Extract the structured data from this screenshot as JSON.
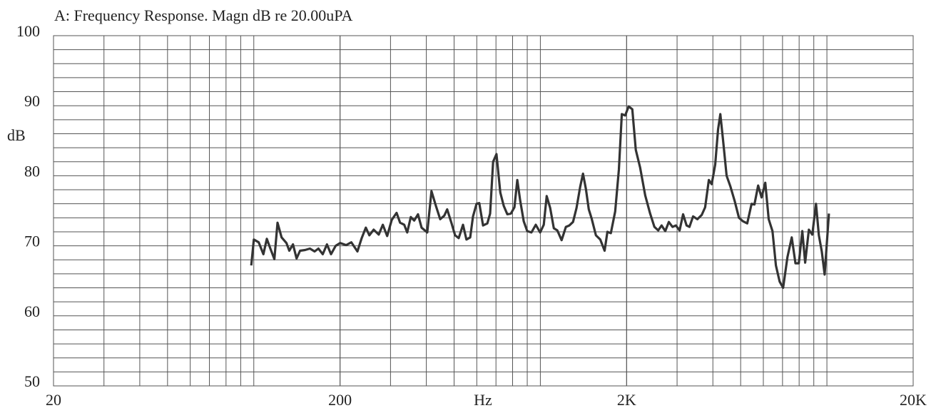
{
  "chart_data": {
    "type": "line",
    "title": "A: Frequency Response. Magn dB re 20.00uPA",
    "y_label": "dB",
    "x_label": "Hz",
    "x_log": true,
    "grid": true,
    "color": "#333333",
    "xlim": [
      20,
      20000
    ],
    "xticks": [
      20,
      200,
      {
        "value": 2000,
        "label": "2K"
      },
      {
        "value": 20000,
        "label": "20K"
      }
    ],
    "ylim": [
      50,
      100
    ],
    "yticks": [
      50,
      60,
      70,
      80,
      90,
      100
    ],
    "x": [
      98,
      100,
      104,
      108,
      111,
      114,
      118,
      121,
      125,
      130,
      133,
      137,
      141,
      145,
      151,
      157,
      163,
      168,
      174,
      180,
      186,
      193,
      200,
      210,
      219,
      230,
      238,
      246,
      253,
      262,
      273,
      282,
      292,
      303,
      315,
      324,
      335,
      343,
      353,
      363,
      374,
      385,
      403,
      417,
      432,
      447,
      462,
      473,
      490,
      504,
      519,
      537,
      552,
      569,
      582,
      599,
      612,
      631,
      653,
      668,
      684,
      703,
      725,
      745,
      767,
      789,
      812,
      831,
      850,
      875,
      900,
      931,
      964,
      998,
      1028,
      1052,
      1082,
      1114,
      1146,
      1186,
      1228,
      1262,
      1300,
      1337,
      1377,
      1409,
      1442,
      1476,
      1510,
      1563,
      1618,
      1676,
      1714,
      1762,
      1824,
      1880,
      1924,
      1977,
      2033,
      2094,
      2153,
      2229,
      2323,
      2416,
      2501,
      2577,
      2649,
      2729,
      2807,
      2891,
      2972,
      3062,
      3148,
      3238,
      3313,
      3412,
      3532,
      3656,
      3758,
      3872,
      3963,
      4075,
      4170,
      4246,
      4346,
      4468,
      4603,
      4766,
      4933,
      5094,
      5273,
      5459,
      5586,
      5754,
      5917,
      6096,
      6266,
      6456,
      6638,
      6839,
      7032,
      7282,
      7539,
      7765,
      7980,
      8205,
      8396,
      8650,
      8892,
      9163,
      9376,
      9596,
      9820,
      10164
    ],
    "values": [
      67.2,
      70.9,
      70.5,
      68.8,
      71.0,
      69.7,
      68.1,
      73.3,
      71.2,
      70.4,
      69.3,
      70.2,
      68.2,
      69.3,
      69.4,
      69.6,
      69.2,
      69.6,
      68.8,
      70.2,
      68.8,
      70.0,
      70.4,
      70.1,
      70.5,
      69.2,
      71.1,
      72.6,
      71.5,
      72.3,
      71.6,
      73.0,
      71.4,
      73.7,
      74.7,
      73.3,
      73.0,
      71.9,
      74.1,
      73.6,
      74.5,
      72.6,
      71.9,
      77.8,
      75.7,
      73.8,
      74.3,
      75.2,
      73.2,
      71.5,
      71.1,
      73.0,
      70.9,
      71.2,
      74.2,
      76.0,
      76.1,
      72.9,
      73.2,
      74.6,
      82.0,
      83.1,
      77.6,
      75.7,
      74.5,
      74.6,
      75.5,
      79.4,
      76.5,
      73.5,
      72.1,
      71.9,
      73.0,
      71.9,
      73.0,
      77.1,
      75.4,
      72.5,
      72.2,
      70.8,
      72.7,
      72.9,
      73.4,
      75.4,
      78.4,
      80.3,
      78.1,
      75.2,
      73.9,
      71.5,
      70.9,
      69.3,
      72.0,
      71.8,
      74.9,
      80.9,
      88.8,
      88.6,
      89.9,
      89.5,
      83.7,
      81.2,
      77.2,
      74.6,
      72.7,
      72.2,
      72.9,
      72.1,
      73.4,
      72.7,
      72.9,
      72.2,
      74.5,
      72.9,
      72.7,
      74.2,
      73.8,
      74.4,
      75.5,
      79.4,
      78.8,
      81.6,
      86.6,
      88.8,
      84.9,
      80.0,
      78.5,
      76.4,
      74.0,
      73.5,
      73.2,
      76.0,
      75.9,
      78.6,
      76.9,
      79.0,
      73.8,
      72.1,
      67.2,
      64.9,
      64.0,
      68.4,
      71.2,
      67.5,
      67.5,
      72.1,
      67.6,
      72.3,
      71.6,
      76.0,
      71.5,
      69.2,
      65.9,
      74.6
    ]
  }
}
